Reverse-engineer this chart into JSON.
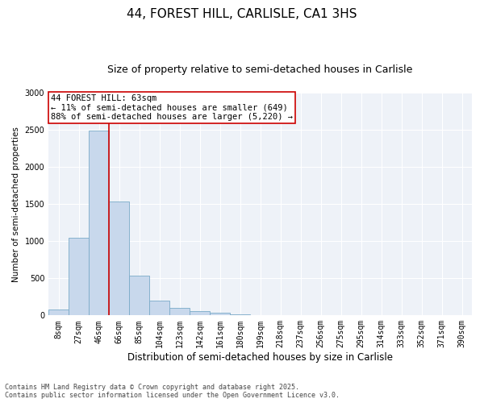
{
  "title": "44, FOREST HILL, CARLISLE, CA1 3HS",
  "subtitle": "Size of property relative to semi-detached houses in Carlisle",
  "xlabel": "Distribution of semi-detached houses by size in Carlisle",
  "ylabel": "Number of semi-detached properties",
  "footer_line1": "Contains HM Land Registry data © Crown copyright and database right 2025.",
  "footer_line2": "Contains public sector information licensed under the Open Government Licence v3.0.",
  "bar_labels": [
    "8sqm",
    "27sqm",
    "46sqm",
    "66sqm",
    "85sqm",
    "104sqm",
    "123sqm",
    "142sqm",
    "161sqm",
    "180sqm",
    "199sqm",
    "218sqm",
    "237sqm",
    "256sqm",
    "275sqm",
    "295sqm",
    "314sqm",
    "333sqm",
    "352sqm",
    "371sqm",
    "390sqm"
  ],
  "bar_values": [
    80,
    1050,
    2490,
    1530,
    535,
    195,
    100,
    55,
    38,
    15,
    0,
    0,
    0,
    0,
    0,
    0,
    0,
    0,
    0,
    0,
    0
  ],
  "bar_color": "#c8d8ec",
  "bar_edgecolor": "#7aaac8",
  "vline_color": "#cc0000",
  "vline_bin_index": 3,
  "annotation_text_line1": "44 FOREST HILL: 63sqm",
  "annotation_text_line2": "← 11% of semi-detached houses are smaller (649)",
  "annotation_text_line3": "88% of semi-detached houses are larger (5,220) →",
  "annotation_boxcolor": "white",
  "annotation_edgecolor": "#cc0000",
  "ylim": [
    0,
    3000
  ],
  "yticks": [
    0,
    500,
    1000,
    1500,
    2000,
    2500,
    3000
  ],
  "background_color": "#eef2f8",
  "title_fontsize": 11,
  "subtitle_fontsize": 9,
  "xlabel_fontsize": 8.5,
  "ylabel_fontsize": 7.5,
  "tick_fontsize": 7,
  "annotation_fontsize": 7.5,
  "footer_fontsize": 6
}
